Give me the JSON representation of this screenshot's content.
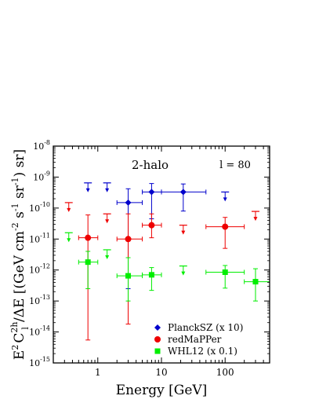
{
  "chart_data": {
    "type": "scatter",
    "title": "",
    "annotations": {
      "panel_label": "2-halo",
      "multipole": "l = 80"
    },
    "xlabel": "Energy [GeV]",
    "ylabel": {
      "base": "E",
      "exp1": "2",
      "sym": "C",
      "sup2h": "2h",
      "subl": "l",
      "rest": "/ΔE  [(GeV cm",
      "exp_cm": "-2",
      "s": " s",
      "exp_s": "-1",
      "sr": " sr",
      "exp_sr": "-1",
      "tail": ") sr]"
    },
    "x_scale": "log",
    "y_scale": "log",
    "xlim": [
      0.2,
      500
    ],
    "ylim": [
      1e-15,
      1e-08
    ],
    "x_ticks": [
      {
        "value": 1,
        "label": "1"
      },
      {
        "value": 10,
        "label": "10"
      },
      {
        "value": 100,
        "label": "100"
      }
    ],
    "y_ticks": [
      {
        "value": 1e-15,
        "mant": "10",
        "exp": "-15"
      },
      {
        "value": 1e-14,
        "mant": "10",
        "exp": "-14"
      },
      {
        "value": 1e-13,
        "mant": "10",
        "exp": "-13"
      },
      {
        "value": 1e-12,
        "mant": "10",
        "exp": "-12"
      },
      {
        "value": 1e-11,
        "mant": "10",
        "exp": "-11"
      },
      {
        "value": 1e-10,
        "mant": "10",
        "exp": "-10"
      },
      {
        "value": 1e-09,
        "mant": "10",
        "exp": "-9"
      },
      {
        "value": 1e-08,
        "mant": "10",
        "exp": "-8"
      }
    ],
    "grid": false,
    "legend_position": "bottom-right",
    "series": [
      {
        "name": "PlanckSZ (x 10)",
        "color": "#0000cc",
        "marker": "diamond",
        "upper_limits": [
          {
            "x": 0.7,
            "y": 6.5e-10
          },
          {
            "x": 1.4,
            "y": 6.5e-10
          },
          {
            "x": 100,
            "y": 3.3e-10
          }
        ],
        "points": [
          {
            "x": 3.0,
            "y": 1.5e-10,
            "x_lo": 2.0,
            "x_hi": 5.0,
            "y_lo": 2.5e-13,
            "y_hi": 4.2e-10
          },
          {
            "x": 7.0,
            "y": 3.3e-10,
            "x_lo": 5.0,
            "x_hi": 10.0,
            "y_lo": 4.5e-11,
            "y_hi": 6.2e-10
          },
          {
            "x": 22.0,
            "y": 3.3e-10,
            "x_lo": 10.0,
            "x_hi": 50.0,
            "y_lo": 8e-11,
            "y_hi": 6e-10
          }
        ]
      },
      {
        "name": "redMaPPer",
        "color": "#ee0000",
        "marker": "circle",
        "upper_limits": [
          {
            "x": 0.35,
            "y": 1.5e-10
          },
          {
            "x": 1.4,
            "y": 6.5e-11
          },
          {
            "x": 22.0,
            "y": 2.8e-11
          },
          {
            "x": 300,
            "y": 7.8e-11
          }
        ],
        "points": [
          {
            "x": 0.7,
            "y": 1.1e-11,
            "x_lo": 0.5,
            "x_hi": 1.0,
            "y_lo": 5.5e-15,
            "y_hi": 6e-11
          },
          {
            "x": 3.0,
            "y": 1e-11,
            "x_lo": 2.0,
            "x_hi": 5.0,
            "y_lo": 1.8e-14,
            "y_hi": 6.5e-11
          },
          {
            "x": 7.0,
            "y": 2.8e-11,
            "x_lo": 5.0,
            "x_hi": 10.0,
            "y_lo": 1.1e-11,
            "y_hi": 6.5e-11
          },
          {
            "x": 100,
            "y": 2.5e-11,
            "x_lo": 50,
            "x_hi": 200,
            "y_lo": 5e-12,
            "y_hi": 5e-11
          }
        ]
      },
      {
        "name": "WHL12 (x 0.1)",
        "color": "#00ee00",
        "marker": "square",
        "upper_limits": [
          {
            "x": 0.35,
            "y": 1.6e-11
          },
          {
            "x": 1.4,
            "y": 4.5e-12
          },
          {
            "x": 22.0,
            "y": 1.35e-12
          }
        ],
        "points": [
          {
            "x": 0.7,
            "y": 1.8e-12,
            "x_lo": 0.5,
            "x_hi": 1.0,
            "y_lo": 2.5e-13,
            "y_hi": 4e-12
          },
          {
            "x": 3.0,
            "y": 6.5e-13,
            "x_lo": 2.0,
            "x_hi": 5.0,
            "y_lo": 1e-13,
            "y_hi": 2.5e-12
          },
          {
            "x": 7.0,
            "y": 7e-13,
            "x_lo": 5.0,
            "x_hi": 10.0,
            "y_lo": 2.2e-13,
            "y_hi": 1.2e-12
          },
          {
            "x": 100,
            "y": 8.5e-13,
            "x_lo": 50,
            "x_hi": 200,
            "y_lo": 2.6e-13,
            "y_hi": 1.4e-12
          },
          {
            "x": 300,
            "y": 4.2e-13,
            "x_lo": 200,
            "x_hi": 500,
            "y_lo": 1e-13,
            "y_hi": 1.1e-12
          }
        ]
      }
    ]
  }
}
